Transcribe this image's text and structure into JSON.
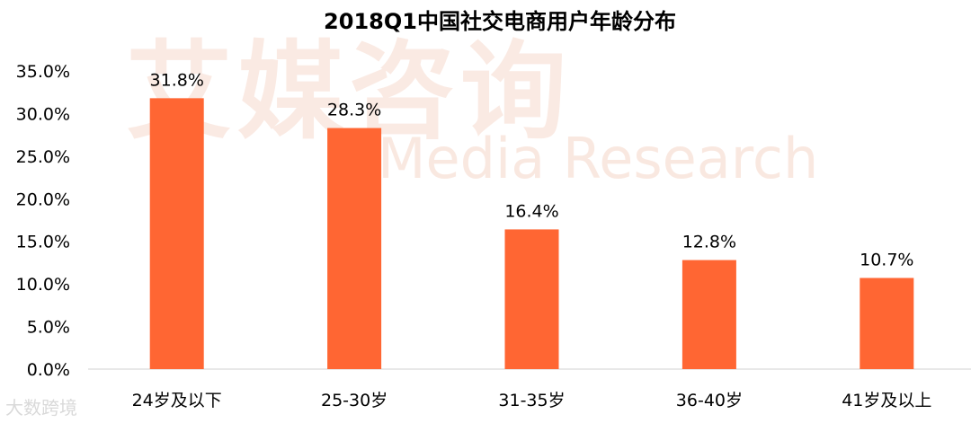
{
  "chart_data": {
    "type": "bar",
    "title": "2018Q1中国社交电商用户年龄分布",
    "categories": [
      "24岁及以下",
      "25-30岁",
      "31-35岁",
      "36-40岁",
      "41岁及以上"
    ],
    "values": [
      31.8,
      28.3,
      16.4,
      12.8,
      10.7
    ],
    "value_labels": [
      "31.8%",
      "28.3%",
      "16.4%",
      "12.8%",
      "10.7%"
    ],
    "y_ticks": [
      "0.0%",
      "5.0%",
      "10.0%",
      "15.0%",
      "20.0%",
      "25.0%",
      "30.0%",
      "35.0%"
    ],
    "ylim": [
      0,
      35
    ],
    "grid": false,
    "bar_color": "#ff6633"
  },
  "watermark": {
    "cn": "艾媒咨询",
    "en": "Media Research"
  },
  "corner_mark": "大数跨境"
}
